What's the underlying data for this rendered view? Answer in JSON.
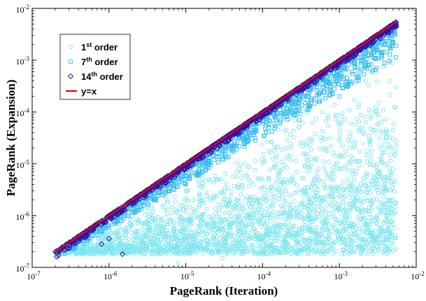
{
  "chart_data": {
    "type": "scatter",
    "title": "",
    "xlabel": "PageRank (Iteration)",
    "ylabel": "PageRank (Expansion)",
    "xscale": "log",
    "yscale": "log",
    "xlim": [
      1e-07,
      0.01
    ],
    "ylim": [
      1e-07,
      0.01
    ],
    "grid": false,
    "legend_position": "top-left",
    "x_ticks": [
      {
        "value": 1e-07,
        "base": "10",
        "exp": "-7"
      },
      {
        "value": 1e-06,
        "base": "10",
        "exp": "-6"
      },
      {
        "value": 1e-05,
        "base": "10",
        "exp": "-5"
      },
      {
        "value": 0.0001,
        "base": "10",
        "exp": "-4"
      },
      {
        "value": 0.001,
        "base": "10",
        "exp": "-3"
      },
      {
        "value": 0.01,
        "base": "10",
        "exp": "-2"
      }
    ],
    "y_ticks": [
      {
        "value": 1e-07,
        "base": "10",
        "exp": "-7"
      },
      {
        "value": 1e-06,
        "base": "10",
        "exp": "-6"
      },
      {
        "value": 1e-05,
        "base": "10",
        "exp": "-5"
      },
      {
        "value": 0.0001,
        "base": "10",
        "exp": "-4"
      },
      {
        "value": 0.001,
        "base": "10",
        "exp": "-3"
      },
      {
        "value": 0.01,
        "base": "10",
        "exp": "-2"
      }
    ],
    "series": [
      {
        "name": "1st order",
        "label_pre": "1",
        "label_sup": "st",
        "label_post": " order",
        "marker": "circle",
        "color": "#7fe6f0",
        "points": [
          [
            2e-07,
            1.9e-07
          ],
          [
            5e-07,
            3e-07
          ],
          [
            1e-06,
            3.8e-07
          ],
          [
            1e-06,
            6e-07
          ],
          [
            3e-06,
            2.2e-07
          ],
          [
            5e-06,
            5e-07
          ],
          [
            1e-05,
            2.5e-07
          ],
          [
            1e-05,
            1.2e-06
          ],
          [
            2e-05,
            3e-07
          ],
          [
            3e-05,
            8e-07
          ],
          [
            5e-05,
            2.5e-07
          ],
          [
            6e-05,
            2e-06
          ],
          [
            0.0001,
            3.5e-07
          ],
          [
            0.0001,
            1e-06
          ],
          [
            0.00015,
            2e-07
          ],
          [
            0.0002,
            4e-07
          ],
          [
            0.0002,
            3e-06
          ],
          [
            0.0003,
            2.2e-07
          ],
          [
            0.0004,
            6e-07
          ],
          [
            0.0005,
            1.2e-05
          ],
          [
            0.0006,
            3e-07
          ],
          [
            0.0008,
            2e-06
          ],
          [
            0.001,
            5e-07
          ],
          [
            0.0012,
            8e-06
          ],
          [
            0.0015,
            3e-07
          ],
          [
            0.002,
            1e-06
          ],
          [
            0.0025,
            1e-05
          ],
          [
            0.003,
            4e-07
          ],
          [
            0.004,
            3e-06
          ],
          [
            0.005,
            2e-06
          ],
          [
            0.0055,
            0.0003
          ],
          [
            0.005,
            3e-05
          ],
          [
            0.003,
            0.0001
          ],
          [
            0.002,
            5e-05
          ],
          [
            0.001,
            3e-05
          ],
          [
            0.0006,
            0.0001
          ],
          [
            0.0004,
            3e-05
          ],
          [
            0.0002,
            2e-05
          ],
          [
            0.0001,
            1e-05
          ],
          [
            5e-05,
            8e-06
          ],
          [
            2e-05,
            5e-06
          ],
          [
            1e-05,
            3e-06
          ],
          [
            5e-06,
            1.5e-06
          ],
          [
            2e-06,
            8e-07
          ],
          [
            8e-06,
            1.2e-07
          ],
          [
            3e-05,
            1.5e-07
          ],
          [
            8e-05,
            1.8e-07
          ],
          [
            3e-06,
            4e-07
          ]
        ]
      },
      {
        "name": "7th order",
        "label_pre": "7",
        "label_sup": "th",
        "label_post": " order",
        "marker": "square",
        "color": "#33bbee",
        "points": [
          [
            3e-07,
            2.5e-07
          ],
          [
            6e-07,
            4.2e-07
          ],
          [
            1e-06,
            6.5e-07
          ],
          [
            2e-06,
            1.2e-06
          ],
          [
            4e-06,
            2e-06
          ],
          [
            6e-06,
            3e-06
          ],
          [
            1e-05,
            6e-06
          ],
          [
            2e-05,
            1e-05
          ],
          [
            4e-05,
            1.8e-05
          ],
          [
            6e-05,
            3e-05
          ],
          [
            0.0001,
            6e-05
          ],
          [
            0.0002,
            8e-05
          ],
          [
            0.0004,
            0.0002
          ],
          [
            0.0006,
            0.0003
          ],
          [
            0.001,
            0.0005
          ],
          [
            0.002,
            0.001
          ],
          [
            0.004,
            0.002
          ],
          [
            0.005,
            0.0035
          ],
          [
            0.0003,
            7e-05
          ],
          [
            0.001,
            0.0002
          ],
          [
            1e-05,
            4e-06
          ],
          [
            3e-05,
            1.2e-05
          ]
        ]
      },
      {
        "name": "14th order",
        "label_pre": "14",
        "label_sup": "th",
        "label_post": " order",
        "marker": "diamond",
        "color": "#2d12a6",
        "points": [
          [
            2e-07,
            2e-07
          ],
          [
            4e-07,
            3.9e-07
          ],
          [
            7e-07,
            6.8e-07
          ],
          [
            1e-06,
            9.7e-07
          ],
          [
            2e-06,
            1.9e-06
          ],
          [
            4e-06,
            3.9e-06
          ],
          [
            7e-06,
            6.8e-06
          ],
          [
            1e-05,
            9.7e-06
          ],
          [
            2e-05,
            1.9e-05
          ],
          [
            4e-05,
            3.8e-05
          ],
          [
            7e-05,
            6.7e-05
          ],
          [
            0.0001,
            9.5e-05
          ],
          [
            0.0002,
            0.00019
          ],
          [
            0.0004,
            0.00037
          ],
          [
            0.0007,
            0.00065
          ],
          [
            0.001,
            0.0009
          ],
          [
            0.002,
            0.0018
          ],
          [
            0.0035,
            0.0031
          ],
          [
            0.0055,
            0.005
          ],
          [
            0.0055,
            0.0044
          ],
          [
            8e-07,
            2.8e-07
          ],
          [
            1e-06,
            3.6e-07
          ],
          [
            1.5e-06,
            1.8e-07
          ]
        ]
      },
      {
        "name": "y=x",
        "label_pre": "y=x",
        "label_sup": "",
        "label_post": "",
        "marker": "line",
        "color": "#ee0000",
        "points": [
          [
            2e-07,
            2e-07
          ],
          [
            0.0055,
            0.0055
          ]
        ]
      }
    ]
  }
}
